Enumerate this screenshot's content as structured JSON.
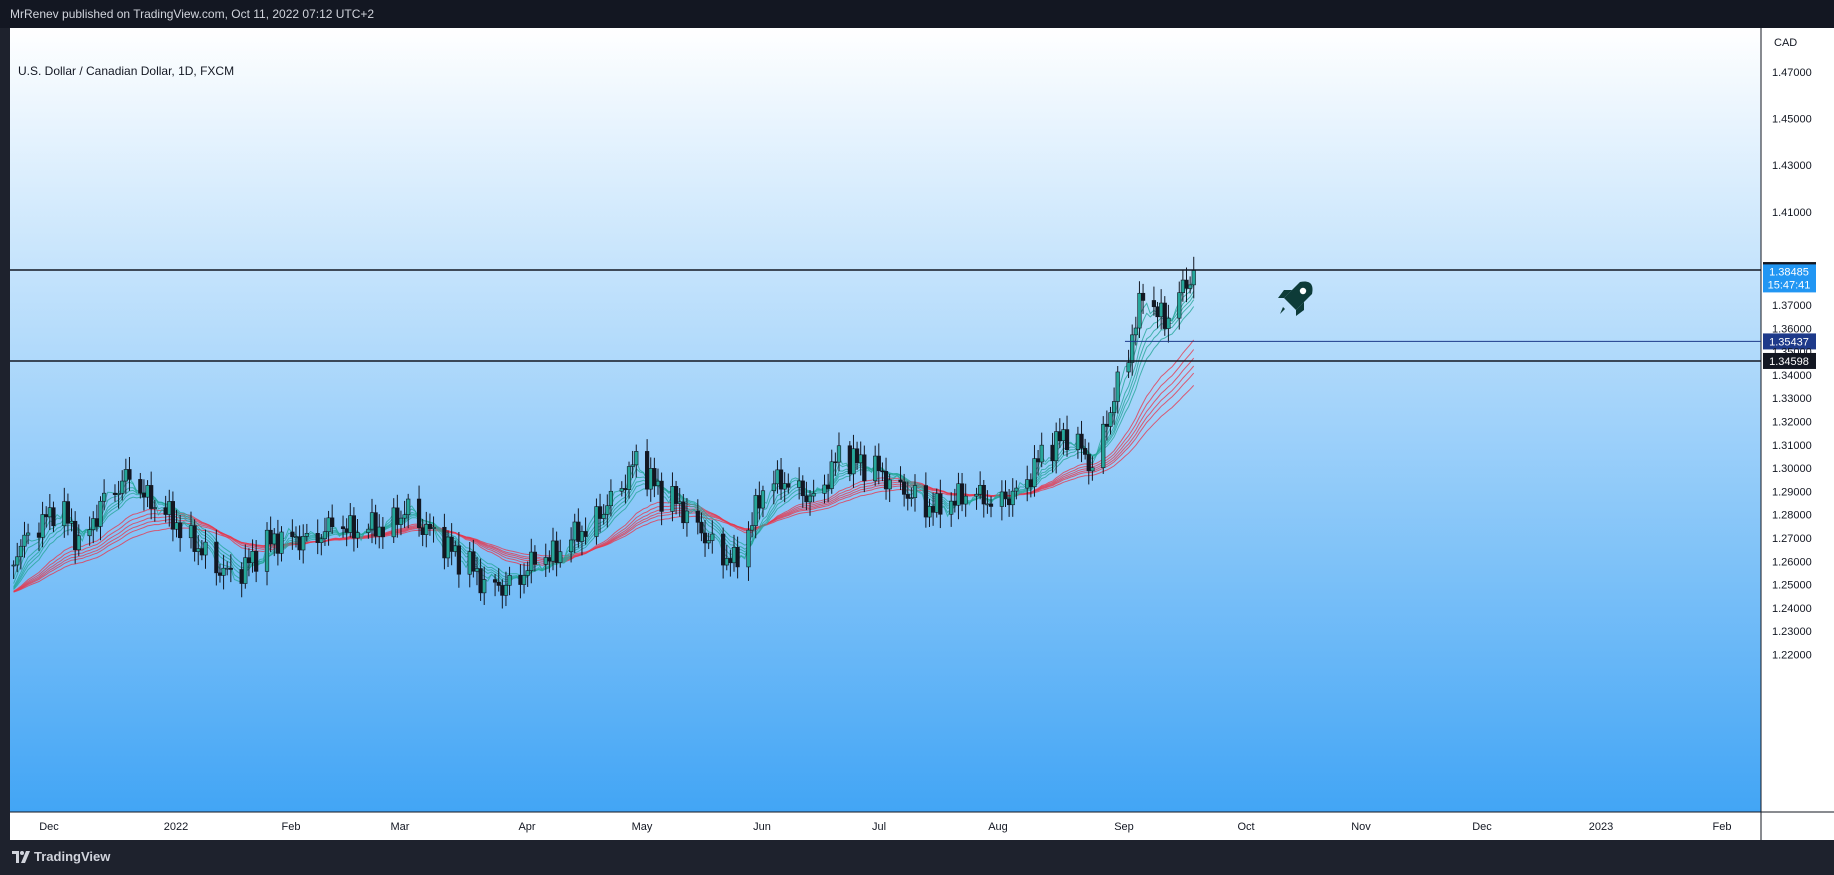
{
  "header": {
    "published_by": "MrRenev published on TradingView.com, Oct 11, 2022 07:12 UTC+2"
  },
  "symbol": {
    "title": "U.S. Dollar / Canadian Dollar, 1D, FXCM"
  },
  "footer": {
    "logo_text": "TradingView"
  },
  "colors": {
    "background_top": "#ffffff",
    "background_bottom": "#42a5f5",
    "up_candle": "#26a69a",
    "candle": "#131722",
    "fast_ema": "#26a69a",
    "slow_ema": "#e53950",
    "price_label": "#2196f3",
    "level_label": "#131722",
    "mark_label": "#1e3a8a"
  },
  "chart_data": {
    "type": "candlestick",
    "title": "U.S. Dollar / Canadian Dollar, 1D, FXCM",
    "currency": "CAD",
    "ylim": [
      1.222,
      1.482
    ],
    "price_scale_labels": [
      "1.47000",
      "1.45000",
      "1.43000",
      "1.41000",
      "1.37000",
      "1.36000",
      "1.35000",
      "1.34000",
      "1.33000",
      "1.32000",
      "1.31000",
      "1.30000",
      "1.29000",
      "1.28000",
      "1.27000",
      "1.26000",
      "1.25000",
      "1.24000",
      "1.23000",
      "1.22000"
    ],
    "x_labels": [
      "Dec",
      "2022",
      "Feb",
      "Mar",
      "Apr",
      "May",
      "Jun",
      "Jul",
      "Aug",
      "Sep",
      "Oct",
      "Nov",
      "Dec",
      "2023",
      "Feb"
    ],
    "horizontal_levels": [
      {
        "value": 1.385,
        "label": "1.38500"
      },
      {
        "value": 1.34598,
        "label": "1.34598"
      }
    ],
    "ray": {
      "value": 1.35437,
      "label": "1.35437",
      "start": "2022-09-22"
    },
    "last_price": {
      "value": 1.38485,
      "label": "1.38485",
      "countdown": "15:47:41"
    },
    "annotation": "rocket-icon",
    "indicator": "Guppy multiple moving averages (fast: green, slow: red)",
    "close_path": [
      [
        "2021-11-19",
        1.263
      ],
      [
        "2021-11-25",
        1.272
      ],
      [
        "2021-12-01",
        1.283
      ],
      [
        "2021-12-08",
        1.268
      ],
      [
        "2021-12-14",
        1.288
      ],
      [
        "2021-12-20",
        1.295
      ],
      [
        "2021-12-28",
        1.283
      ],
      [
        "2022-01-04",
        1.276
      ],
      [
        "2022-01-12",
        1.262
      ],
      [
        "2022-01-19",
        1.251
      ],
      [
        "2022-01-25",
        1.262
      ],
      [
        "2022-02-01",
        1.272
      ],
      [
        "2022-02-08",
        1.27
      ],
      [
        "2022-02-15",
        1.274
      ],
      [
        "2022-02-22",
        1.272
      ],
      [
        "2022-03-01",
        1.276
      ],
      [
        "2022-03-08",
        1.283
      ],
      [
        "2022-03-15",
        1.27
      ],
      [
        "2022-03-22",
        1.261
      ],
      [
        "2022-03-29",
        1.252
      ],
      [
        "2022-04-04",
        1.25
      ],
      [
        "2022-04-11",
        1.258
      ],
      [
        "2022-04-18",
        1.262
      ],
      [
        "2022-04-25",
        1.274
      ],
      [
        "2022-05-02",
        1.285
      ],
      [
        "2022-05-10",
        1.302
      ],
      [
        "2022-05-17",
        1.288
      ],
      [
        "2022-05-24",
        1.282
      ],
      [
        "2022-05-31",
        1.268
      ],
      [
        "2022-06-07",
        1.258
      ],
      [
        "2022-06-14",
        1.29
      ],
      [
        "2022-06-21",
        1.296
      ],
      [
        "2022-06-28",
        1.287
      ],
      [
        "2022-07-05",
        1.304
      ],
      [
        "2022-07-12",
        1.301
      ],
      [
        "2022-07-19",
        1.296
      ],
      [
        "2022-07-26",
        1.288
      ],
      [
        "2022-08-02",
        1.281
      ],
      [
        "2022-08-09",
        1.288
      ],
      [
        "2022-08-16",
        1.287
      ],
      [
        "2022-08-23",
        1.29
      ],
      [
        "2022-08-30",
        1.304
      ],
      [
        "2022-09-06",
        1.314
      ],
      [
        "2022-09-13",
        1.302
      ],
      [
        "2022-09-20",
        1.336
      ],
      [
        "2022-09-27",
        1.373
      ],
      [
        "2022-10-03",
        1.362
      ],
      [
        "2022-10-11",
        1.3848
      ]
    ]
  }
}
